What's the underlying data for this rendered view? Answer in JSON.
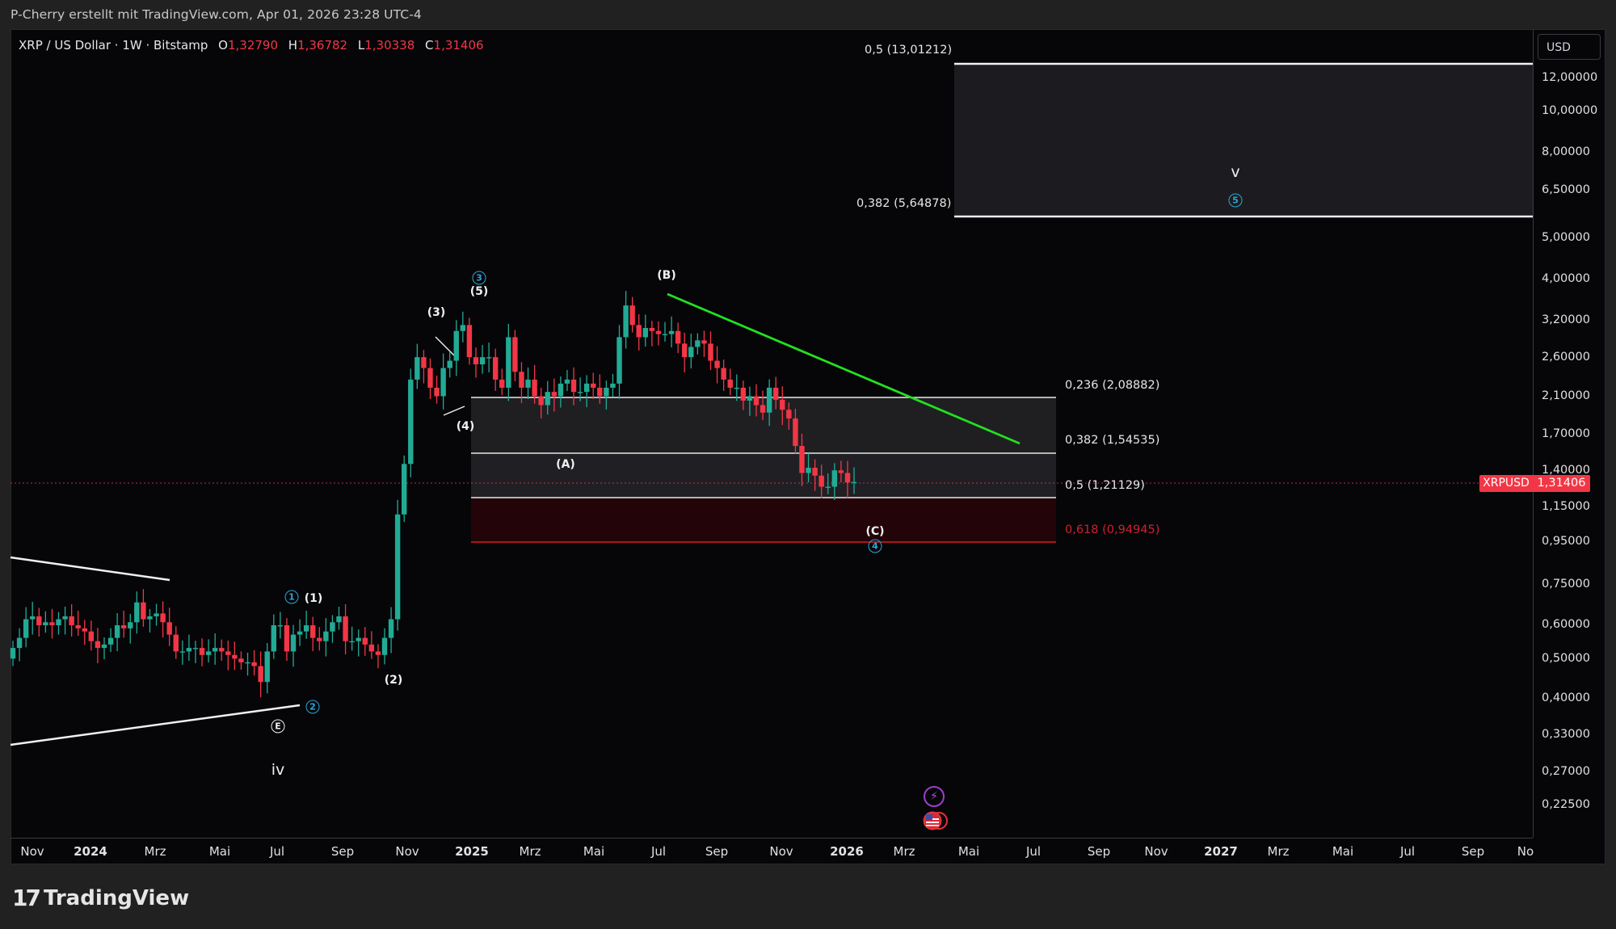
{
  "attribution": "P-Cherry erstellt mit TradingView.com, Apr 01, 2026 23:28 UTC-4",
  "legend": {
    "symbol": "XRP / US Dollar · 1W · Bitstamp",
    "open_label": "O",
    "open": "1,32790",
    "high_label": "H",
    "high": "1,36782",
    "low_label": "L",
    "low": "1,30338",
    "close_label": "C",
    "close": "1,31406"
  },
  "price_axis": {
    "currency": "USD",
    "ticks": [
      "12,00000",
      "10,00000",
      "8,00000",
      "6,50000",
      "5,00000",
      "4,00000",
      "3,20000",
      "2,60000",
      "2,10000",
      "1,70000",
      "1,40000",
      "1,15000",
      "0,95000",
      "0,75000",
      "0,60000",
      "0,50000",
      "0,40000",
      "0,33000",
      "0,27000",
      "0,22500"
    ]
  },
  "last_price": {
    "symbol": "XRPUSD",
    "value": "1,31406",
    "color": "#f23645"
  },
  "time_axis": {
    "labels": [
      "Nov",
      "2024",
      "Mrz",
      "Mai",
      "Jul",
      "Sep",
      "Nov",
      "2025",
      "Mrz",
      "Mai",
      "Jul",
      "Sep",
      "Nov",
      "2026",
      "Mrz",
      "Mai",
      "Jul",
      "Sep",
      "Nov",
      "2027",
      "Mrz",
      "Mai",
      "Jul",
      "Sep",
      "No"
    ]
  },
  "fib_upper": {
    "level_top": "0,5 (13,01212)",
    "level_bottom": "0,382 (5,64878)"
  },
  "fib_lower": {
    "l0236": "0,236 (2,08882)",
    "l0382": "0,382 (1,54535)",
    "l05": "0,5 (1,21129)",
    "l0618": "0,618 (0,94945)"
  },
  "waves": {
    "w3_minor": "(3)",
    "w4_minor": "(4)",
    "w5_minor": "(5)",
    "circle3": "3",
    "circle1": "1",
    "circle2": "2",
    "circle4": "4",
    "circle5": "5",
    "wA": "(A)",
    "wB": "(B)",
    "wC": "(C)",
    "w1_minor": "(1)",
    "w2_minor": "(2)",
    "E": "E",
    "iv": "iv",
    "v": "v"
  },
  "events": {
    "bolt": "⚡",
    "flag": "US"
  },
  "branding": {
    "logo_mark": "17",
    "logo_text": "TradingView"
  },
  "colors": {
    "up": "#22ab94",
    "down": "#f23645",
    "trendline": "#22e01f",
    "fib_line": "#f0f0f0",
    "fib_618": "#c0161f",
    "background": "#060609"
  },
  "chart_data": {
    "type": "candlestick",
    "title": "XRP / US Dollar · 1W · Bitstamp",
    "scale": "log",
    "ylim": [
      0.2,
      14.5
    ],
    "ylabel": "USD",
    "x_range": [
      "2023-10",
      "2027-11"
    ],
    "ohlc_last": {
      "open": 1.3279,
      "high": 1.36782,
      "low": 1.30338,
      "close": 1.31406
    },
    "fib_levels": [
      {
        "ratio": 0.5,
        "price": 13.01212
      },
      {
        "ratio": 0.382,
        "price": 5.64878
      },
      {
        "ratio": 0.236,
        "price": 2.08882
      },
      {
        "ratio": 0.382,
        "price": 1.54535
      },
      {
        "ratio": 0.5,
        "price": 1.21129
      },
      {
        "ratio": 0.618,
        "price": 0.94945
      }
    ],
    "annotations": [
      "(1)",
      "(2)",
      "(3)",
      "(4)",
      "(5)",
      "(A)",
      "(B)",
      "(C)",
      "E",
      "iv",
      "v",
      "①",
      "②",
      "③",
      "④",
      "⑤"
    ],
    "trendline": {
      "from": [
        "2025-07",
        3.66
      ],
      "to": [
        "2026-07",
        1.62
      ],
      "color": "#22e01f"
    },
    "triangle_lines": [
      {
        "from": [
          "2023-10",
          0.87
        ],
        "to": [
          "2024-03",
          0.75
        ]
      },
      {
        "from": [
          "2023-10",
          0.33
        ],
        "to": [
          "2024-08",
          0.39
        ]
      }
    ]
  }
}
